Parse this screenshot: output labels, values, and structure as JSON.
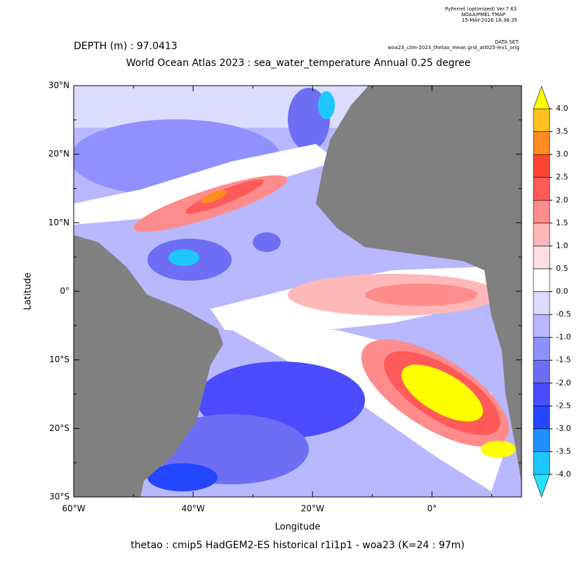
{
  "chart_data": {
    "type": "map",
    "header": {
      "software": "PyFerret (optimized) Ver.7.63",
      "lab": "NOAA/PMEL TMAP",
      "timestamp": "15-MAY-2026 18:38:35",
      "dataset_label": "DATA SET:",
      "dataset": "woa23_clim-2023_thetao_mean.grid_atl025-lev1_orig"
    },
    "depth": "DEPTH (m) : 97.0413",
    "title": "World Ocean Atlas 2023 : sea_water_temperature Annual  0.25 degree",
    "xlabel": "Longitude",
    "ylabel": "Latitude",
    "caption": "thetao : cmip5 HadGEM2-ES historical r1i1p1 - woa23  (K=24 : 97m)",
    "xlim": [
      -60,
      15
    ],
    "ylim": [
      -30,
      30
    ],
    "xticks": [
      {
        "value": -60,
        "label": "60°W"
      },
      {
        "value": -40,
        "label": "40°W"
      },
      {
        "value": -20,
        "label": "20°W"
      },
      {
        "value": 0,
        "label": "0°"
      }
    ],
    "yticks": [
      {
        "value": -30,
        "label": "30°S"
      },
      {
        "value": -20,
        "label": "20°S"
      },
      {
        "value": -10,
        "label": "10°S"
      },
      {
        "value": 0,
        "label": "0°"
      },
      {
        "value": 10,
        "label": "10°N"
      },
      {
        "value": 20,
        "label": "20°N"
      },
      {
        "value": 30,
        "label": "30°N"
      }
    ],
    "colorbar": {
      "levels": [
        {
          "value": -4,
          "label": "-4.0"
        },
        {
          "value": -3.5,
          "label": "-3.5"
        },
        {
          "value": -3,
          "label": "-3.0"
        },
        {
          "value": -2.5,
          "label": "-2.5"
        },
        {
          "value": -2,
          "label": "-2.0"
        },
        {
          "value": -1.5,
          "label": "-1.5"
        },
        {
          "value": -1,
          "label": "-1.0"
        },
        {
          "value": -0.5,
          "label": "-0.5"
        },
        {
          "value": 0,
          "label": "0.0"
        },
        {
          "value": 0.5,
          "label": "0.5"
        },
        {
          "value": 1,
          "label": "1.0"
        },
        {
          "value": 1.5,
          "label": "1.5"
        },
        {
          "value": 2,
          "label": "2.0"
        },
        {
          "value": 2.5,
          "label": "2.5"
        },
        {
          "value": 3,
          "label": "3.0"
        },
        {
          "value": 3.5,
          "label": "3.5"
        },
        {
          "value": 4,
          "label": "4.0"
        }
      ],
      "colors": [
        "#22e6ff",
        "#1ec8ff",
        "#1e90ff",
        "#2346ff",
        "#4b4bff",
        "#6e6ef5",
        "#9090ff",
        "#b8b8ff",
        "#dcdcff",
        "#ffffff",
        "#ffe0e0",
        "#ffb8b8",
        "#ff8c8c",
        "#ff5a5a",
        "#ff4632",
        "#ff8c1e",
        "#ffc020",
        "#ffff00"
      ]
    }
  }
}
